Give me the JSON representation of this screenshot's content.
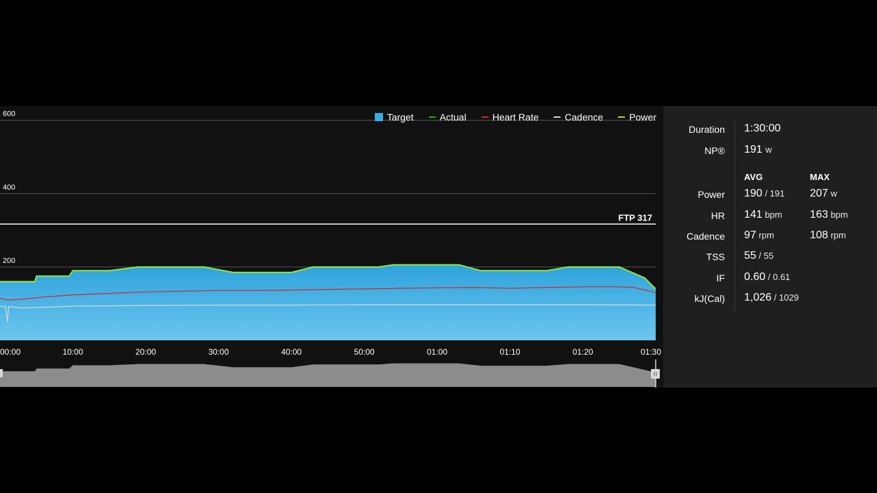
{
  "chart_data": {
    "type": "area",
    "title": "",
    "legend": [
      {
        "name": "Target",
        "color": "#3aabe2",
        "kind": "box"
      },
      {
        "name": "Actual",
        "color": "#1fb020",
        "kind": "line"
      },
      {
        "name": "Heart Rate",
        "color": "#d02828",
        "kind": "line"
      },
      {
        "name": "Cadence",
        "color": "#d8d8d8",
        "kind": "line"
      },
      {
        "name": "Power",
        "color": "#c8d800",
        "kind": "line"
      }
    ],
    "legend_position": "top-right",
    "ylim": [
      0,
      620
    ],
    "y_ticks": [
      200,
      400,
      600
    ],
    "y_tick_labels": [
      "200",
      "400",
      "600"
    ],
    "xlim": [
      0,
      90
    ],
    "x_ticks": [
      0,
      10,
      20,
      30,
      40,
      50,
      60,
      70,
      80,
      90
    ],
    "x_tick_labels": [
      "00:00",
      "10:00",
      "20:00",
      "30:00",
      "40:00",
      "50:00",
      "01:00",
      "01:10",
      "01:20",
      "01:30"
    ],
    "ftp": {
      "value": 317,
      "label": "FTP 317"
    },
    "series": [
      {
        "name": "Target",
        "points": [
          [
            0,
            160
          ],
          [
            4.8,
            160
          ],
          [
            5,
            175
          ],
          [
            9.5,
            175
          ],
          [
            10,
            190
          ],
          [
            15,
            190
          ],
          [
            19,
            200
          ],
          [
            28,
            200
          ],
          [
            32,
            185
          ],
          [
            40,
            185
          ],
          [
            43,
            200
          ],
          [
            52,
            200
          ],
          [
            54,
            206
          ],
          [
            63,
            206
          ],
          [
            66,
            190
          ],
          [
            75,
            190
          ],
          [
            78,
            200
          ],
          [
            85,
            200
          ],
          [
            88.5,
            170
          ],
          [
            90,
            140
          ]
        ]
      },
      {
        "name": "Actual",
        "points": [
          [
            0,
            160
          ],
          [
            4.8,
            160
          ],
          [
            5,
            175
          ],
          [
            9.5,
            175
          ],
          [
            10,
            190
          ],
          [
            15,
            190
          ],
          [
            19,
            200
          ],
          [
            28,
            200
          ],
          [
            32,
            185
          ],
          [
            40,
            185
          ],
          [
            43,
            200
          ],
          [
            52,
            200
          ],
          [
            54,
            206
          ],
          [
            63,
            206
          ],
          [
            66,
            190
          ],
          [
            75,
            190
          ],
          [
            78,
            200
          ],
          [
            85,
            200
          ],
          [
            88.5,
            170
          ],
          [
            90,
            140
          ]
        ]
      },
      {
        "name": "Heart Rate",
        "points": [
          [
            0,
            115
          ],
          [
            1,
            110
          ],
          [
            3,
            112
          ],
          [
            6,
            118
          ],
          [
            10,
            124
          ],
          [
            15,
            128
          ],
          [
            20,
            132
          ],
          [
            25,
            134
          ],
          [
            30,
            136
          ],
          [
            35,
            136
          ],
          [
            40,
            137
          ],
          [
            45,
            139
          ],
          [
            50,
            140
          ],
          [
            55,
            142
          ],
          [
            60,
            143
          ],
          [
            65,
            144
          ],
          [
            70,
            142
          ],
          [
            75,
            144
          ],
          [
            80,
            146
          ],
          [
            85,
            146
          ],
          [
            87,
            144
          ],
          [
            89,
            135
          ],
          [
            90,
            130
          ]
        ]
      },
      {
        "name": "Cadence",
        "points": [
          [
            0,
            92
          ],
          [
            0.8,
            92
          ],
          [
            1,
            50
          ],
          [
            1.2,
            92
          ],
          [
            3,
            88
          ],
          [
            10,
            93
          ],
          [
            20,
            95
          ],
          [
            30,
            96
          ],
          [
            40,
            96
          ],
          [
            50,
            97
          ],
          [
            60,
            97
          ],
          [
            70,
            97
          ],
          [
            80,
            97
          ],
          [
            90,
            96
          ]
        ]
      }
    ],
    "overview_profile": [
      [
        0,
        120
      ],
      [
        4.8,
        120
      ],
      [
        5,
        140
      ],
      [
        9.5,
        140
      ],
      [
        10,
        165
      ],
      [
        15,
        165
      ],
      [
        19,
        175
      ],
      [
        28,
        175
      ],
      [
        32,
        150
      ],
      [
        40,
        150
      ],
      [
        43,
        172
      ],
      [
        52,
        172
      ],
      [
        54,
        180
      ],
      [
        63,
        180
      ],
      [
        66,
        162
      ],
      [
        75,
        162
      ],
      [
        78,
        175
      ],
      [
        85,
        175
      ],
      [
        90,
        110
      ]
    ]
  },
  "stats": {
    "duration": {
      "label": "Duration",
      "value": "1:30:00"
    },
    "np": {
      "label": "NP®",
      "value": "191",
      "unit": "w"
    },
    "headers": {
      "avg": "AVG",
      "max": "MAX"
    },
    "rows": [
      {
        "label": "Power",
        "avg": "190",
        "avg_sub": "/ 191",
        "max": "207",
        "max_unit": "w"
      },
      {
        "label": "HR",
        "avg": "141",
        "avg_sub": "bpm",
        "max": "163",
        "max_unit": "bpm"
      },
      {
        "label": "Cadence",
        "avg": "97",
        "avg_sub": "rpm",
        "max": "108",
        "max_unit": "rpm"
      },
      {
        "label": "TSS",
        "avg": "55",
        "avg_sub": "/ 55",
        "max": "",
        "max_unit": ""
      },
      {
        "label": "IF",
        "avg": "0.60",
        "avg_sub": "/ 0.61",
        "max": "",
        "max_unit": ""
      },
      {
        "label": "kJ(Cal)",
        "avg": "1,026",
        "avg_sub": "/ 1029",
        "max": "",
        "max_unit": ""
      }
    ]
  }
}
